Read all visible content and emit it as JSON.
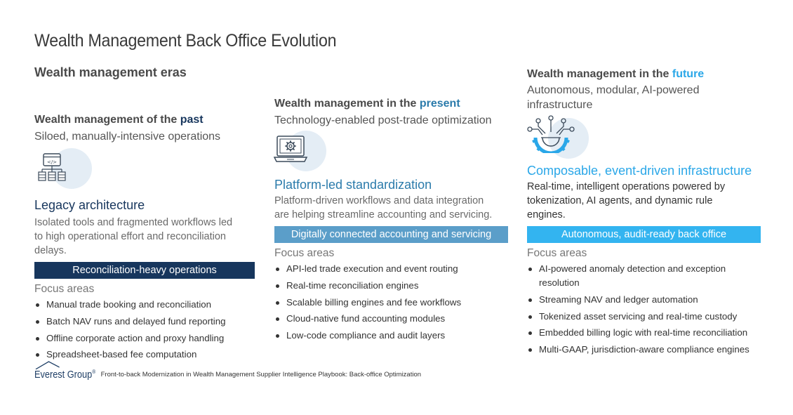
{
  "page": {
    "title": "Wealth Management Back Office Evolution",
    "eras_heading": "Wealth management eras"
  },
  "colors": {
    "past_accent": "#17365d",
    "present_accent": "#2b7bab",
    "future_accent": "#2aa7e8",
    "present_banner": "#5b9ec9",
    "future_banner": "#33b4f0",
    "icon_circle": "#e4edf5"
  },
  "past": {
    "title_prefix": "Wealth management of the ",
    "title_highlight": "past",
    "subtitle": "Siloed, manually-intensive operations",
    "icon": "legacy-architecture-icon",
    "model_title": "Legacy architecture",
    "model_desc": "Isolated tools and fragmented workflows led to high operational effort and reconciliation delays.",
    "banner": "Reconciliation-heavy operations",
    "focus_label": "Focus areas",
    "focus_items": [
      "Manual trade booking and reconciliation",
      "Batch NAV runs and delayed fund reporting",
      "Offline corporate action and proxy handling",
      "Spreadsheet-based fee computation"
    ]
  },
  "present": {
    "title_prefix": "Wealth management in the ",
    "title_highlight": "present",
    "subtitle": "Technology-enabled post-trade optimization",
    "icon": "laptop-gear-icon",
    "model_title": "Platform-led standardization",
    "model_desc": "Platform-driven workflows and data integration are helping streamline accounting and servicing.",
    "banner": "Digitally connected accounting and servicing",
    "focus_label": "Focus areas",
    "focus_items": [
      "API-led trade execution and event routing",
      "Real-time reconciliation engines",
      "Scalable billing engines and fee workflows",
      "Cloud-native fund accounting modules",
      "Low-code compliance and audit layers"
    ]
  },
  "future": {
    "title_prefix": "Wealth management in the ",
    "title_highlight": "future",
    "subtitle": "Autonomous, modular, AI-powered infrastructure",
    "icon": "ai-gear-network-icon",
    "model_title": "Composable, event-driven infrastructure",
    "model_desc": "Real-time, intelligent operations powered by tokenization, AI agents, and dynamic rule engines.",
    "banner": "Autonomous, audit-ready back office",
    "focus_label": "Focus areas",
    "focus_items": [
      "AI-powered anomaly detection and exception resolution",
      "Streaming NAV and ledger automation",
      "Tokenized asset servicing and real-time custody",
      "Embedded billing logic with real-time reconciliation",
      "Multi-GAAP, jurisdiction-aware compliance engines"
    ]
  },
  "footer": {
    "logo_text": "Everest Group",
    "logo_mark": "®",
    "caption": "Front-to-back Modernization in Wealth Management Supplier Intelligence Playbook: Back-office Optimization"
  }
}
